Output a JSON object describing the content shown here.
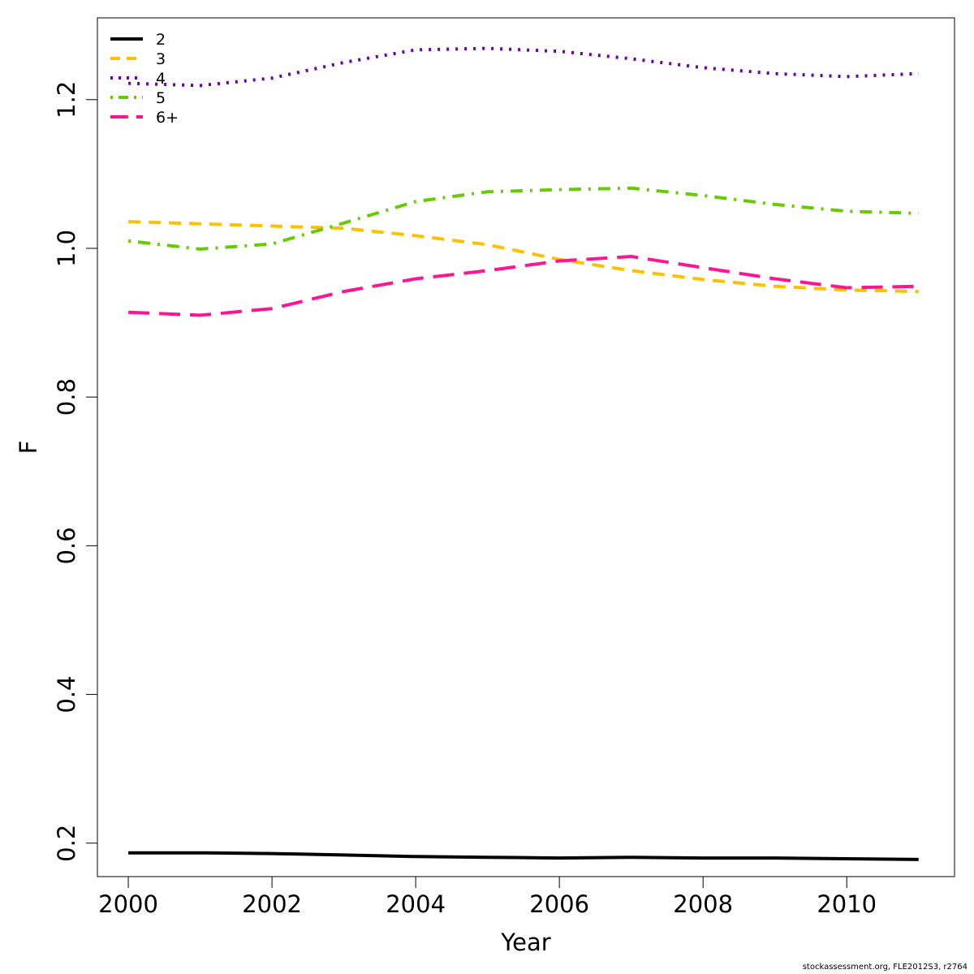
{
  "chart_data": {
    "type": "line",
    "title": "",
    "xlabel": "Year",
    "ylabel": "F",
    "xlim": [
      1999.57,
      2011.5
    ],
    "ylim": [
      0.155,
      1.31
    ],
    "x_ticks": [
      2000,
      2002,
      2004,
      2006,
      2008,
      2010
    ],
    "y_ticks": [
      0.2,
      0.4,
      0.6,
      0.8,
      1.0,
      1.2
    ],
    "x_tick_labels": [
      "2000",
      "2002",
      "2004",
      "2006",
      "2008",
      "2010"
    ],
    "y_tick_labels": [
      "0.2",
      "0.4",
      "0.6",
      "0.8",
      "1.0",
      "1.2"
    ],
    "grid": false,
    "legend_position": "top-left",
    "x": [
      2000,
      2001,
      2002,
      2003,
      2004,
      2005,
      2006,
      2007,
      2008,
      2009,
      2010,
      2011
    ],
    "series": [
      {
        "name": "2",
        "color": "#000000",
        "dash": "solid",
        "values": [
          0.187,
          0.187,
          0.186,
          0.184,
          0.182,
          0.181,
          0.18,
          0.181,
          0.18,
          0.18,
          0.179,
          0.178
        ]
      },
      {
        "name": "3",
        "color": "#ffc000",
        "dash": "dashed",
        "values": [
          1.036,
          1.033,
          1.03,
          1.027,
          1.017,
          1.005,
          0.985,
          0.97,
          0.958,
          0.949,
          0.944,
          0.942
        ]
      },
      {
        "name": "4",
        "color": "#6a00a8",
        "dash": "dotted",
        "values": [
          1.222,
          1.219,
          1.229,
          1.25,
          1.267,
          1.269,
          1.265,
          1.255,
          1.243,
          1.235,
          1.231,
          1.235
        ]
      },
      {
        "name": "5",
        "color": "#66cc00",
        "dash": "dotdash",
        "values": [
          1.01,
          0.999,
          1.006,
          1.034,
          1.063,
          1.076,
          1.079,
          1.081,
          1.071,
          1.059,
          1.05,
          1.047
        ]
      },
      {
        "name": "6+",
        "color": "#ff1493",
        "dash": "longdash",
        "values": [
          0.914,
          0.91,
          0.919,
          0.942,
          0.959,
          0.97,
          0.983,
          0.989,
          0.974,
          0.959,
          0.947,
          0.949
        ]
      }
    ]
  },
  "footer": {
    "credit": "stockassessment.org, FLE2012S3, r2764"
  }
}
